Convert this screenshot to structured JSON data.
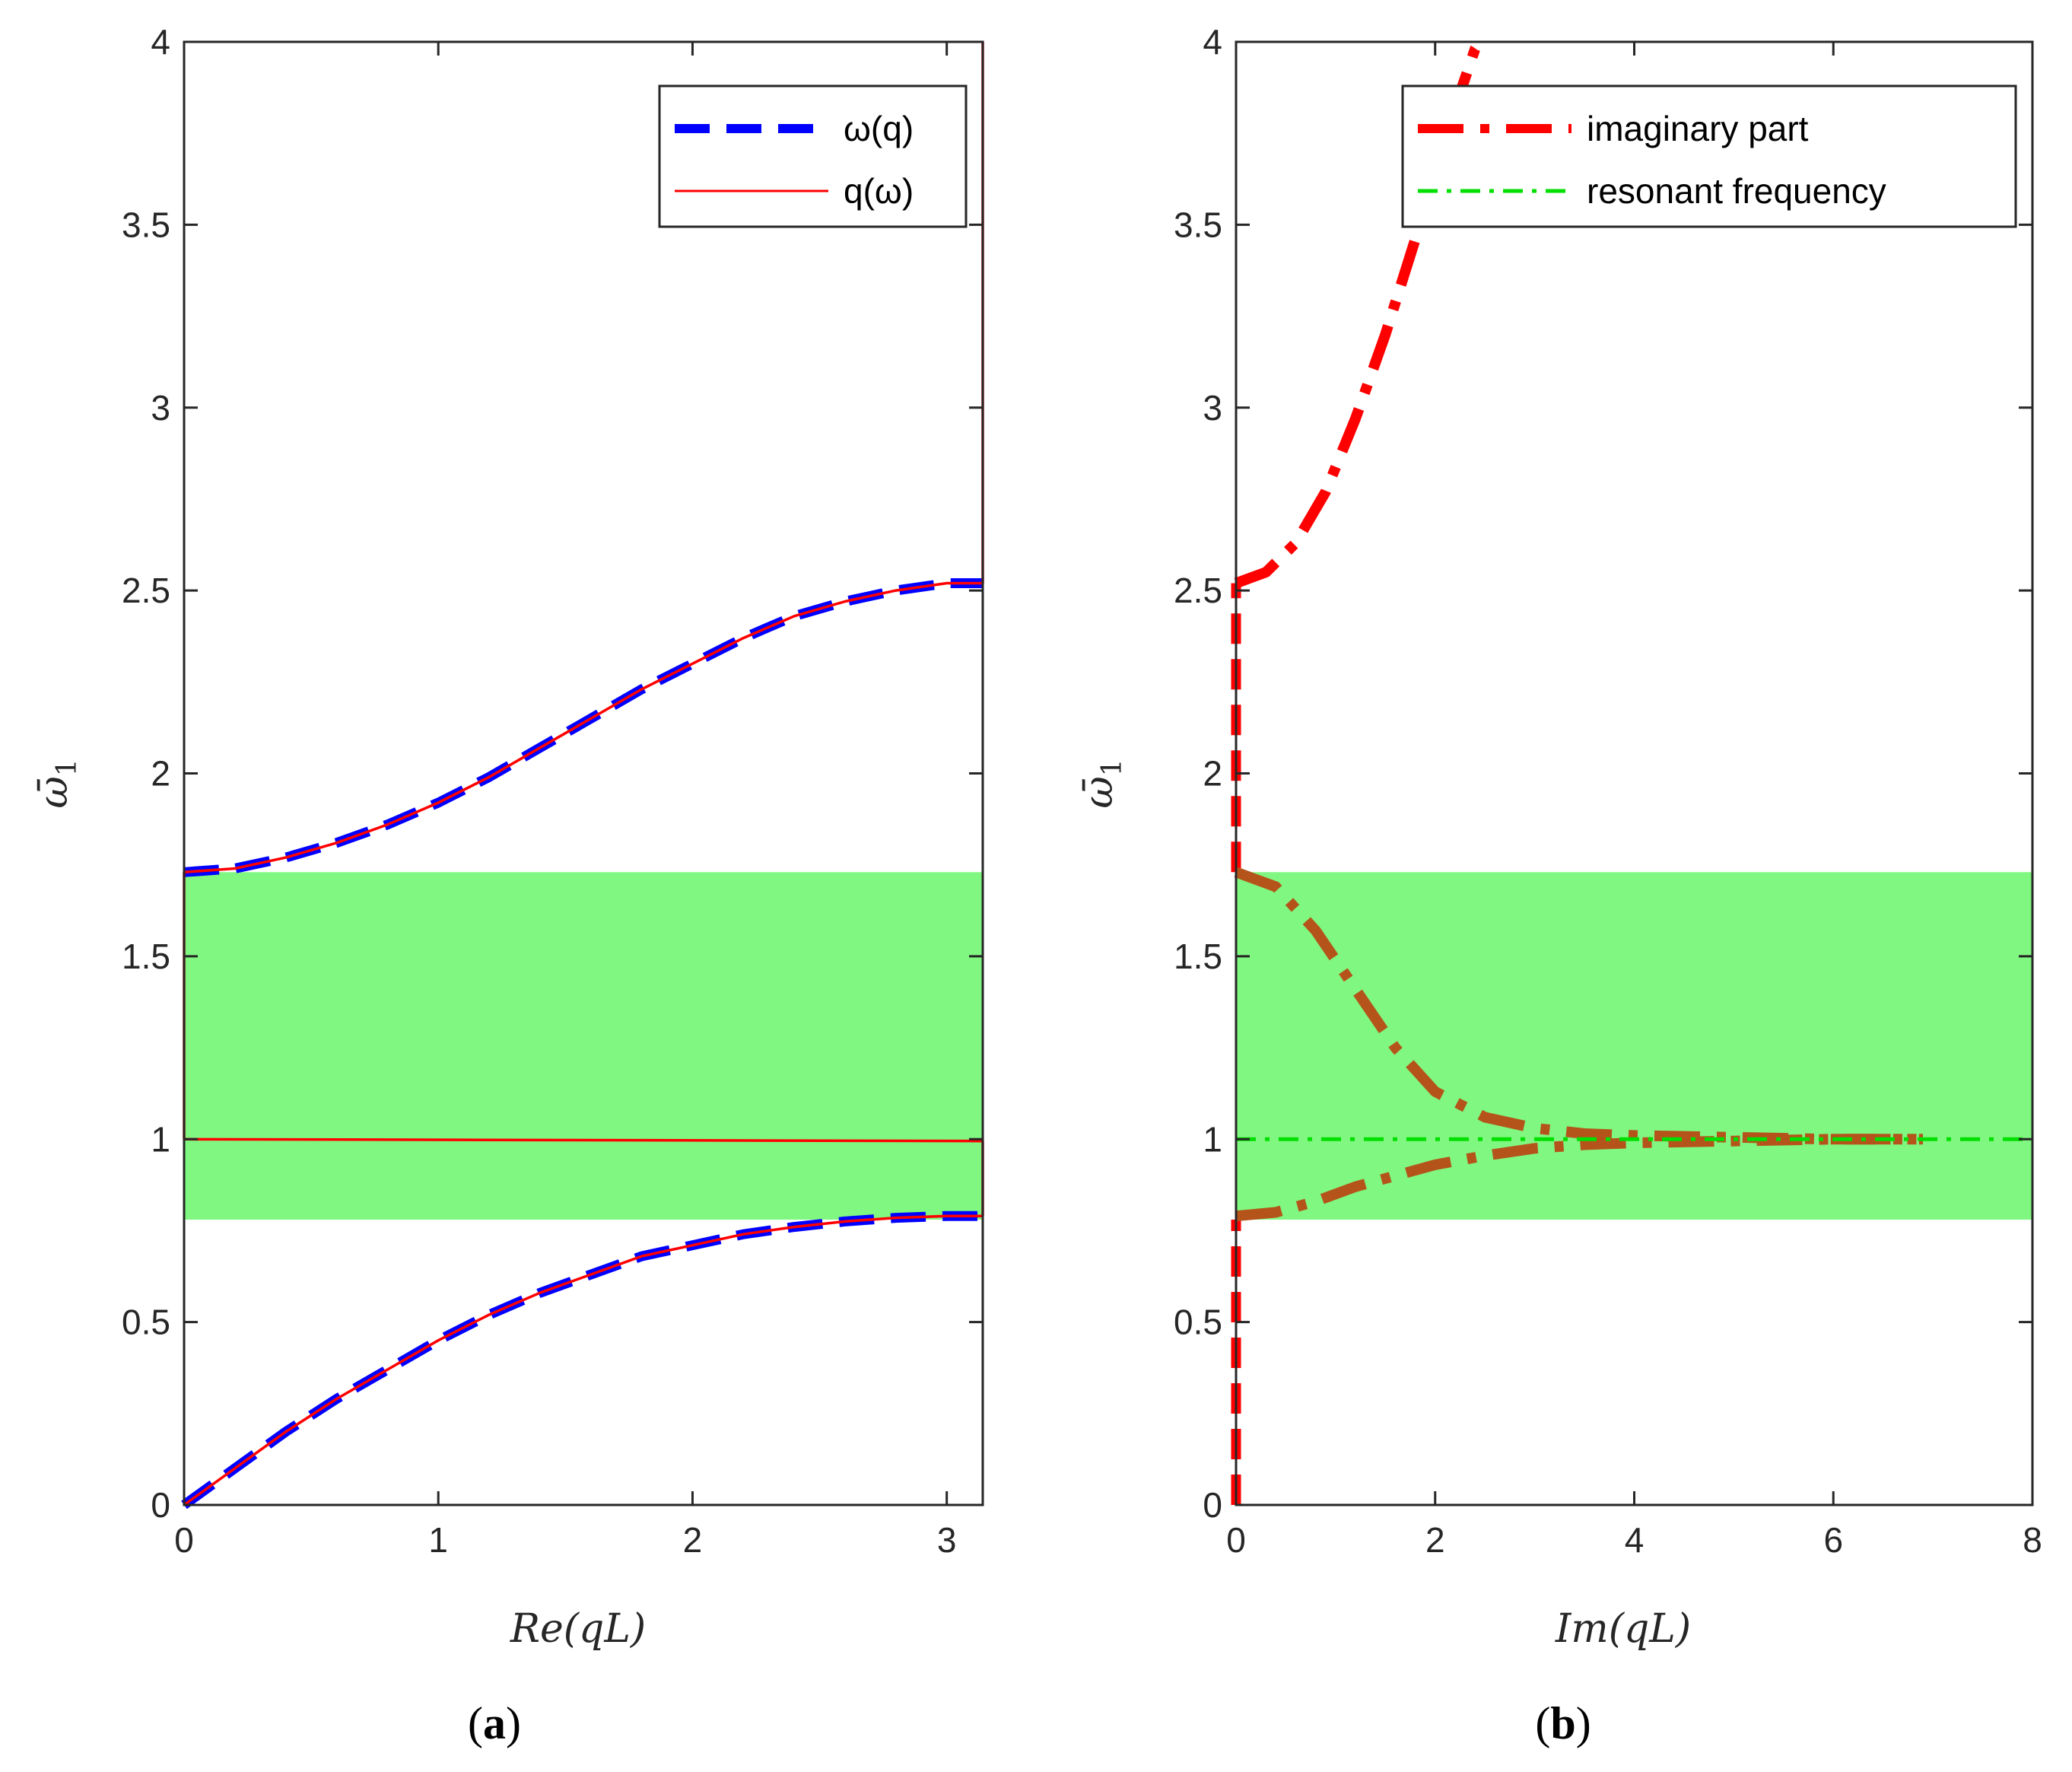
{
  "colors": {
    "band": "#80f780",
    "omega_q": "#0000ff",
    "q_omega": "#ff0000",
    "imaginary": "#ff0000",
    "imaginary_in_band": "#b5541a",
    "resonant": "#00e000",
    "axis": "#262626"
  },
  "chart_data": [
    {
      "type": "line",
      "panel": "a",
      "caption_letter": "a",
      "caption_open": "(",
      "caption_close": ")",
      "xlabel": "Re(qL)",
      "ylabel": "ω̄",
      "ylabel_sub": "1",
      "xlim": [
        0,
        3.1416
      ],
      "ylim": [
        0,
        4
      ],
      "xticks": [
        "0",
        "1",
        "2",
        "3"
      ],
      "xtick_values": [
        0,
        1,
        2,
        3
      ],
      "yticks": [
        "0",
        "0.5",
        "1",
        "1.5",
        "2",
        "2.5",
        "3",
        "3.5",
        "4"
      ],
      "ytick_values": [
        0,
        0.5,
        1,
        1.5,
        2,
        2.5,
        3,
        3.5,
        4
      ],
      "band_gap": [
        0.78,
        1.73
      ],
      "legend": {
        "position": "top-right",
        "entries": [
          {
            "label": "ω(q)",
            "style": "dashed",
            "color": "#0000ff"
          },
          {
            "label": "q(ω)",
            "style": "solid",
            "color": "#ff0000"
          }
        ]
      },
      "series": [
        {
          "name": "ω(q) lower branch",
          "style": "dashed",
          "color": "#0000ff",
          "x": [
            0,
            0.2,
            0.4,
            0.6,
            0.8,
            1.0,
            1.2,
            1.4,
            1.6,
            1.8,
            2.0,
            2.2,
            2.4,
            2.6,
            2.8,
            3.0,
            3.1416
          ],
          "y": [
            0,
            0.1,
            0.2,
            0.29,
            0.37,
            0.45,
            0.52,
            0.58,
            0.63,
            0.68,
            0.71,
            0.74,
            0.76,
            0.775,
            0.785,
            0.79,
            0.79
          ]
        },
        {
          "name": "ω(q) upper branch",
          "style": "dashed",
          "color": "#0000ff",
          "x": [
            0,
            0.2,
            0.4,
            0.6,
            0.8,
            1.0,
            1.2,
            1.4,
            1.6,
            1.8,
            2.0,
            2.2,
            2.4,
            2.6,
            2.8,
            3.0,
            3.1416
          ],
          "y": [
            1.73,
            1.74,
            1.77,
            1.81,
            1.86,
            1.92,
            1.99,
            2.07,
            2.15,
            2.23,
            2.3,
            2.37,
            2.43,
            2.47,
            2.5,
            2.52,
            2.52
          ]
        },
        {
          "name": "q(ω) lower branch",
          "style": "solid",
          "color": "#ff0000",
          "x": [
            0,
            0.2,
            0.4,
            0.6,
            0.8,
            1.0,
            1.2,
            1.4,
            1.6,
            1.8,
            2.0,
            2.2,
            2.4,
            2.6,
            2.8,
            3.0,
            3.1416
          ],
          "y": [
            0,
            0.1,
            0.2,
            0.29,
            0.37,
            0.45,
            0.52,
            0.58,
            0.63,
            0.68,
            0.71,
            0.74,
            0.76,
            0.775,
            0.785,
            0.79,
            0.79
          ]
        },
        {
          "name": "q(ω) upper branch",
          "style": "solid",
          "color": "#ff0000",
          "x": [
            0,
            0.2,
            0.4,
            0.6,
            0.8,
            1.0,
            1.2,
            1.4,
            1.6,
            1.8,
            2.0,
            2.2,
            2.4,
            2.6,
            2.8,
            3.0,
            3.1416
          ],
          "y": [
            1.73,
            1.74,
            1.77,
            1.81,
            1.86,
            1.92,
            1.99,
            2.07,
            2.15,
            2.23,
            2.3,
            2.37,
            2.43,
            2.47,
            2.5,
            2.52,
            2.52
          ]
        },
        {
          "name": "q(ω) resonance line",
          "style": "solid",
          "color": "#ff0000",
          "x": [
            0,
            3.1416
          ],
          "y": [
            1.0,
            0.995
          ]
        },
        {
          "name": "q(ω) left edge",
          "style": "solid",
          "color": "#ff0000",
          "x": [
            0,
            0
          ],
          "y": [
            1.0,
            1.73
          ]
        },
        {
          "name": "q(ω) right edge low",
          "style": "solid",
          "color": "#ff0000",
          "x": [
            3.1416,
            3.1416
          ],
          "y": [
            0.79,
            0.995
          ]
        },
        {
          "name": "q(ω) right edge high",
          "style": "solid",
          "color": "#ff0000",
          "x": [
            3.1416,
            3.1416
          ],
          "y": [
            2.52,
            4.0
          ]
        }
      ]
    },
    {
      "type": "line",
      "panel": "b",
      "caption_letter": "b",
      "caption_open": "(",
      "caption_close": ")",
      "xlabel": "Im(qL)",
      "ylabel": "ω̄",
      "ylabel_sub": "1",
      "xlim": [
        0,
        8
      ],
      "ylim": [
        0,
        4
      ],
      "xticks": [
        "0",
        "2",
        "4",
        "6",
        "8"
      ],
      "xtick_values": [
        0,
        2,
        4,
        6,
        8
      ],
      "yticks": [
        "0",
        "0.5",
        "1",
        "1.5",
        "2",
        "2.5",
        "3",
        "3.5",
        "4"
      ],
      "ytick_values": [
        0,
        0.5,
        1,
        1.5,
        2,
        2.5,
        3,
        3.5,
        4
      ],
      "band_gap": [
        0.78,
        1.73
      ],
      "legend": {
        "position": "top-right",
        "entries": [
          {
            "label": "imaginary part",
            "style": "dashdot-thick",
            "color": "#ff0000"
          },
          {
            "label": "resonant frequency",
            "style": "dashdot",
            "color": "#00e000"
          }
        ]
      },
      "series": [
        {
          "name": "imaginary part upper",
          "style": "dashdot-thick",
          "color": "#ff0000",
          "x": [
            0,
            0.3,
            0.6,
            0.9,
            1.2,
            1.5,
            1.8,
            2.1,
            2.4,
            2.45
          ],
          "y": [
            2.52,
            2.55,
            2.63,
            2.77,
            2.97,
            3.2,
            3.46,
            3.74,
            3.98,
            4.0
          ]
        },
        {
          "name": "imaginary part axis segment high",
          "style": "dashed-thick",
          "color": "#ff0000",
          "x": [
            0,
            0
          ],
          "y": [
            1.73,
            2.52
          ]
        },
        {
          "name": "imaginary part axis segment low",
          "style": "dashed-thick",
          "color": "#ff0000",
          "x": [
            0,
            0
          ],
          "y": [
            0,
            0.78
          ]
        },
        {
          "name": "imaginary part in gap upper",
          "style": "dashdot-thick",
          "color": "#b5541a",
          "x": [
            0,
            0.4,
            0.8,
            1.2,
            1.6,
            2.0,
            2.5,
            3.0,
            3.5,
            4.0,
            5.0,
            6.0,
            6.9
          ],
          "y": [
            1.73,
            1.69,
            1.57,
            1.41,
            1.25,
            1.13,
            1.06,
            1.03,
            1.015,
            1.01,
            1.005,
            1.0,
            1.0
          ]
        },
        {
          "name": "imaginary part in gap lower",
          "style": "dashdot-thick",
          "color": "#b5541a",
          "x": [
            0,
            0.4,
            0.8,
            1.2,
            1.6,
            2.0,
            2.5,
            3.0,
            3.5,
            4.0,
            5.0,
            6.0,
            6.9
          ],
          "y": [
            0.79,
            0.8,
            0.83,
            0.87,
            0.9,
            0.93,
            0.955,
            0.975,
            0.985,
            0.99,
            0.995,
            1.0,
            1.0
          ]
        },
        {
          "name": "resonant frequency",
          "style": "dashdot",
          "color": "#00e000",
          "x": [
            0,
            8
          ],
          "y": [
            1.0,
            1.0
          ]
        }
      ]
    }
  ]
}
